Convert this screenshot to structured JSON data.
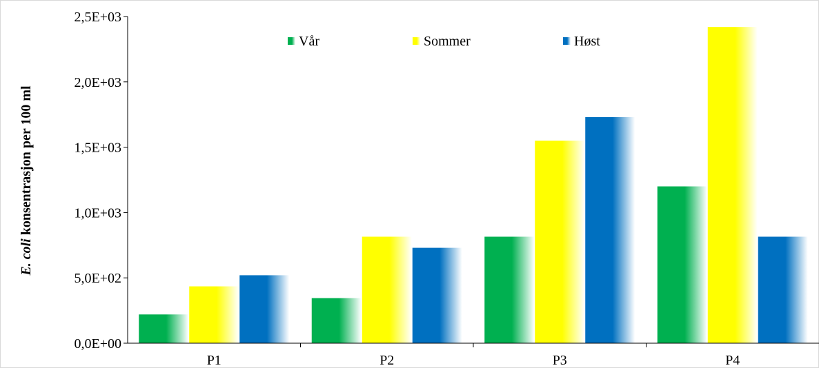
{
  "chart_data": {
    "type": "bar",
    "categories": [
      "P1",
      "P2",
      "P3",
      "P4"
    ],
    "series": [
      {
        "name": "Vår",
        "color": "#00b050",
        "values": [
          220,
          345,
          815,
          1200
        ]
      },
      {
        "name": "Sommer",
        "color": "#ffff00",
        "values": [
          435,
          815,
          1550,
          2420
        ]
      },
      {
        "name": "Høst",
        "color": "#0070c0",
        "values": [
          520,
          730,
          1730,
          815
        ]
      }
    ],
    "yticks": [
      "0,0E+00",
      "5,0E+02",
      "1,0E+03",
      "1,5E+03",
      "2,0E+03",
      "2,5E+03"
    ],
    "ylim": [
      0,
      2500
    ],
    "ylabel_italic": "E. coli",
    "ylabel_rest": " konsentrasjon  per  100 ml",
    "legend_position": "top",
    "grid": false
  }
}
